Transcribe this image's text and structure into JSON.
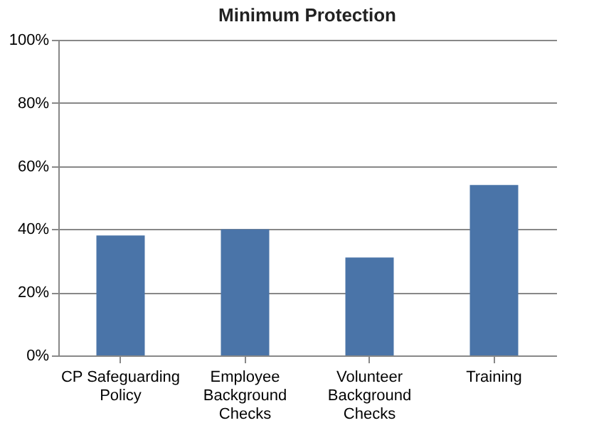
{
  "chart_data": {
    "type": "bar",
    "title": "Minimum Protection",
    "categories": [
      "CP Safeguarding Policy",
      "Employee Background Checks",
      "Volunteer Background Checks",
      "Training"
    ],
    "values": [
      38,
      40,
      31,
      54
    ],
    "color": "#4a74a8",
    "ylim": [
      0,
      100
    ],
    "yticks": [
      {
        "value": 0,
        "label": "0%"
      },
      {
        "value": 20,
        "label": "20%"
      },
      {
        "value": 40,
        "label": "40%"
      },
      {
        "value": 60,
        "label": "60%"
      },
      {
        "value": 80,
        "label": "80%"
      },
      {
        "value": 100,
        "label": "100%"
      }
    ],
    "grid": "y"
  }
}
